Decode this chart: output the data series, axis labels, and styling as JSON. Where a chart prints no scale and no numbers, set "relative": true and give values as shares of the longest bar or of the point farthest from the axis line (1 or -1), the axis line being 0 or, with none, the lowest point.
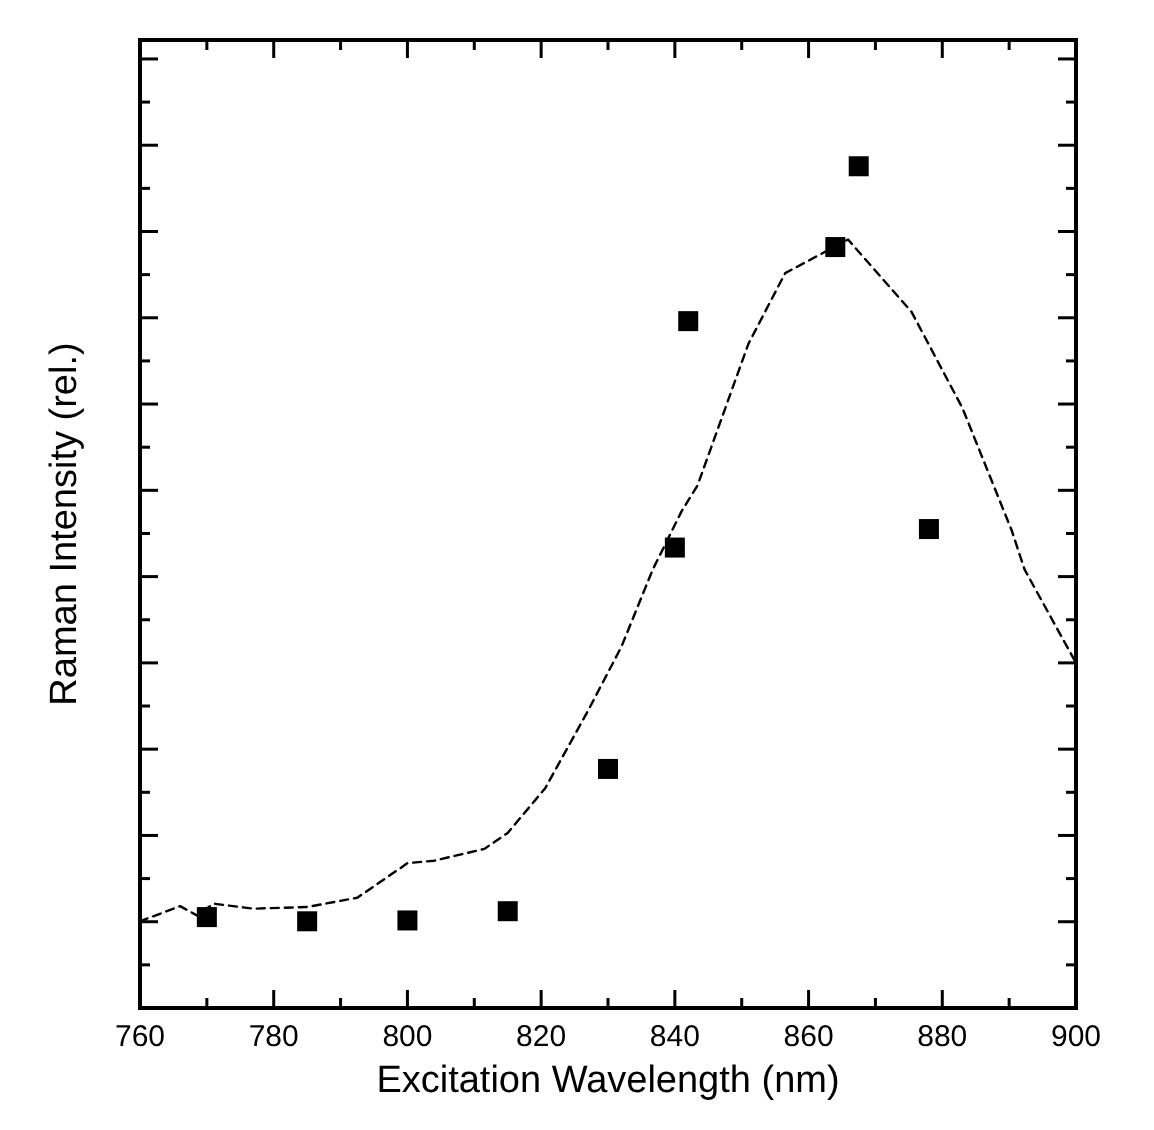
{
  "chart_data": {
    "type": "scatter",
    "xlabel": "Excitation Wavelength (nm)",
    "ylabel": "Raman Intensity (rel.)",
    "relative": true,
    "xlim": [
      760,
      900
    ],
    "xticks": [
      760,
      {
        "value": 770,
        "label": null
      },
      780,
      {
        "value": 790,
        "label": null
      },
      800,
      {
        "value": 810,
        "label": null
      },
      820,
      {
        "value": 830,
        "label": null
      },
      840,
      {
        "value": 850,
        "label": null
      },
      860,
      {
        "value": 870,
        "label": null
      },
      880,
      {
        "value": 890,
        "label": null
      },
      900
    ],
    "grid": false,
    "series": [
      {
        "type": "line",
        "color": "#000000",
        "line_style": "dashed",
        "marker": "none",
        "x": [
          760,
          766,
          768.5,
          771,
          777,
          785,
          792.5,
          800,
          804,
          811.5,
          815,
          820.6,
          827,
          832,
          836.7,
          841,
          843.4,
          851,
          856.5,
          865.9,
          875.4,
          883,
          890.4,
          892.3,
          900
        ],
        "values": [
          0.103,
          0.121,
          0.11,
          0.124,
          0.118,
          0.12,
          0.131,
          0.172,
          0.175,
          0.189,
          0.208,
          0.261,
          0.353,
          0.429,
          0.521,
          0.59,
          0.621,
          0.789,
          0.873,
          0.913,
          0.827,
          0.713,
          0.567,
          0.521,
          0.41
        ]
      },
      {
        "type": "scatter",
        "color": "#000000",
        "marker": "square",
        "x": [
          770,
          785,
          800,
          815,
          830,
          840,
          842,
          864,
          867.5,
          878
        ],
        "values": [
          0.108,
          0.103,
          0.104,
          0.115,
          0.284,
          0.547,
          0.816,
          0.904,
          1,
          0.569
        ]
      }
    ]
  }
}
